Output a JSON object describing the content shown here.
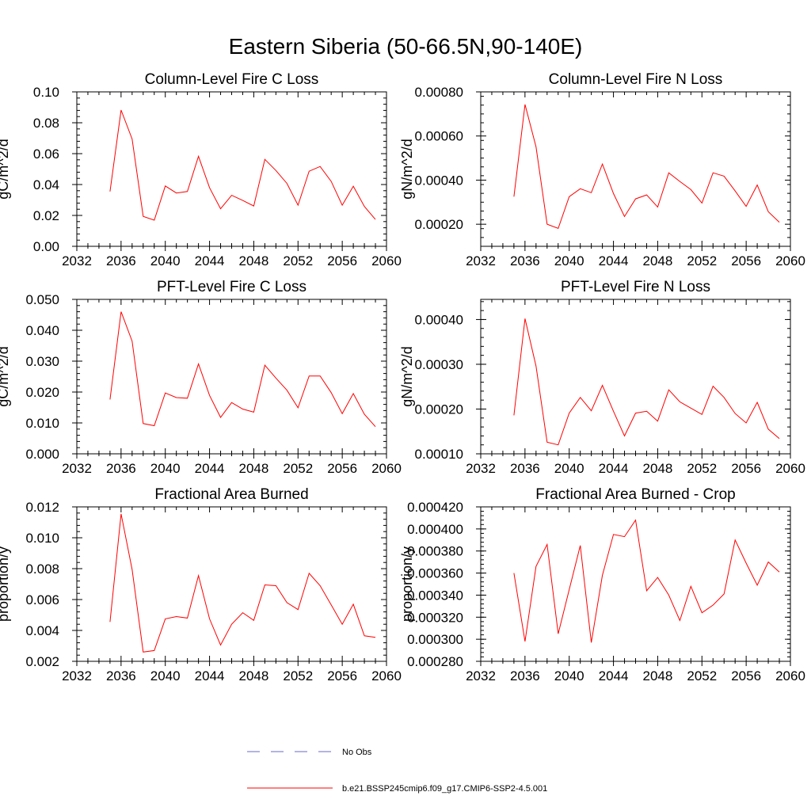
{
  "figure_title": "Eastern Siberia (50-66.5N,90-140E)",
  "colors": {
    "model": "#ff0000",
    "obs": "#6a6acd",
    "axes": "#000000"
  },
  "legend": [
    {
      "label": "No Obs",
      "style": "dashed",
      "color": "#6a6acd"
    },
    {
      "label": "b.e21.BSSP245cmip6.f09_g17.CMIP6-SSP2-4.5.001",
      "style": "solid",
      "color": "#ff0000"
    }
  ],
  "chart_data": [
    {
      "type": "line",
      "title": "Column-Level Fire C Loss",
      "ylabel": "gC/m^2/d",
      "xlabel": "",
      "xlim": [
        2032,
        2060
      ],
      "xticks": [
        "2032",
        "2036",
        "2040",
        "2044",
        "2048",
        "2052",
        "2056",
        "2060"
      ],
      "ylim": [
        0,
        0.1
      ],
      "yticks": [
        "0.00",
        "0.02",
        "0.04",
        "0.06",
        "0.08",
        "0.10"
      ],
      "series": [
        {
          "name": "b.e21.BSSP245cmip6.f09_g17.CMIP6-SSP2-4.5.001",
          "x": [
            2035,
            2036,
            2037,
            2038,
            2039,
            2040,
            2041,
            2042,
            2043,
            2044,
            2045,
            2046,
            2047,
            2048,
            2049,
            2050,
            2051,
            2052,
            2053,
            2054,
            2055,
            2056,
            2057,
            2058,
            2059
          ],
          "y": [
            0.0355,
            0.0882,
            0.0695,
            0.0194,
            0.0169,
            0.0391,
            0.0345,
            0.0355,
            0.0583,
            0.0379,
            0.0243,
            0.033,
            0.0297,
            0.0261,
            0.0563,
            0.0491,
            0.0407,
            0.0266,
            0.0486,
            0.0517,
            0.042,
            0.0266,
            0.0389,
            0.0258,
            0.0174
          ]
        }
      ]
    },
    {
      "type": "line",
      "title": "Column-Level Fire N Loss",
      "ylabel": "gN/m^2/d",
      "xlabel": "",
      "xlim": [
        2032,
        2060
      ],
      "xticks": [
        "2032",
        "2036",
        "2040",
        "2044",
        "2048",
        "2052",
        "2056",
        "2060"
      ],
      "ylim": [
        0.0001,
        0.0008
      ],
      "yticks": [
        "0.00020",
        "0.00040",
        "0.00060",
        "0.00080"
      ],
      "series": [
        {
          "name": "b.e21.BSSP245cmip6.f09_g17.CMIP6-SSP2-4.5.001",
          "x": [
            2035,
            2036,
            2037,
            2038,
            2039,
            2040,
            2041,
            2042,
            2043,
            2044,
            2045,
            2046,
            2047,
            2048,
            2049,
            2050,
            2051,
            2052,
            2053,
            2054,
            2055,
            2056,
            2057,
            2058,
            2059
          ],
          "y": [
            0.000325,
            0.000743,
            0.000551,
            0.0002,
            0.000181,
            0.000325,
            0.000361,
            0.000343,
            0.000473,
            0.000339,
            0.000235,
            0.000315,
            0.000333,
            0.000278,
            0.000433,
            0.000394,
            0.000357,
            0.000296,
            0.000433,
            0.000418,
            0.000351,
            0.000281,
            0.000378,
            0.000257,
            0.000209
          ]
        }
      ]
    },
    {
      "type": "line",
      "title": "PFT-Level Fire C Loss",
      "ylabel": "gC/m^2/d",
      "xlabel": "",
      "xlim": [
        2032,
        2060
      ],
      "xticks": [
        "2032",
        "2036",
        "2040",
        "2044",
        "2048",
        "2052",
        "2056",
        "2060"
      ],
      "ylim": [
        0,
        0.05
      ],
      "yticks": [
        "0.000",
        "0.010",
        "0.020",
        "0.030",
        "0.040",
        "0.050"
      ],
      "series": [
        {
          "name": "b.e21.BSSP245cmip6.f09_g17.CMIP6-SSP2-4.5.001",
          "x": [
            2035,
            2036,
            2037,
            2038,
            2039,
            2040,
            2041,
            2042,
            2043,
            2044,
            2045,
            2046,
            2047,
            2048,
            2049,
            2050,
            2051,
            2052,
            2053,
            2054,
            2055,
            2056,
            2057,
            2058,
            2059
          ],
          "y": [
            0.0176,
            0.046,
            0.0365,
            0.0098,
            0.0091,
            0.0197,
            0.0182,
            0.018,
            0.0291,
            0.0189,
            0.0118,
            0.0166,
            0.0145,
            0.0135,
            0.0287,
            0.0245,
            0.0206,
            0.0149,
            0.0252,
            0.0252,
            0.0198,
            0.013,
            0.0195,
            0.0128,
            0.0088
          ]
        }
      ]
    },
    {
      "type": "line",
      "title": "PFT-Level Fire N Loss",
      "ylabel": "gN/m^2/d",
      "xlabel": "",
      "xlim": [
        2032,
        2060
      ],
      "xticks": [
        "2032",
        "2036",
        "2040",
        "2044",
        "2048",
        "2052",
        "2056",
        "2060"
      ],
      "ylim": [
        0.0001,
        0.000445
      ],
      "yticks": [
        "0.00010",
        "0.00020",
        "0.00030",
        "0.00040"
      ],
      "series": [
        {
          "name": "b.e21.BSSP245cmip6.f09_g17.CMIP6-SSP2-4.5.001",
          "x": [
            2035,
            2036,
            2037,
            2038,
            2039,
            2040,
            2041,
            2042,
            2043,
            2044,
            2045,
            2046,
            2047,
            2048,
            2049,
            2050,
            2051,
            2052,
            2053,
            2054,
            2055,
            2056,
            2057,
            2058,
            2059
          ],
          "y": [
            0.000186,
            0.000402,
            0.000296,
            0.000126,
            0.00012,
            0.000191,
            0.000226,
            0.000196,
            0.000253,
            0.000195,
            0.00014,
            0.000191,
            0.000195,
            0.000173,
            0.000243,
            0.000216,
            0.000202,
            0.000188,
            0.000251,
            0.000226,
            0.00019,
            0.000169,
            0.000215,
            0.000155,
            0.000134
          ]
        }
      ]
    },
    {
      "type": "line",
      "title": "Fractional Area Burned",
      "ylabel": "proportion/y",
      "xlabel": "",
      "xlim": [
        2032,
        2060
      ],
      "xticks": [
        "2032",
        "2036",
        "2040",
        "2044",
        "2048",
        "2052",
        "2056",
        "2060"
      ],
      "ylim": [
        0.002,
        0.012
      ],
      "yticks": [
        "0.002",
        "0.004",
        "0.006",
        "0.008",
        "0.010",
        "0.012"
      ],
      "series": [
        {
          "name": "b.e21.BSSP245cmip6.f09_g17.CMIP6-SSP2-4.5.001",
          "x": [
            2035,
            2036,
            2037,
            2038,
            2039,
            2040,
            2041,
            2042,
            2043,
            2044,
            2045,
            2046,
            2047,
            2048,
            2049,
            2050,
            2051,
            2052,
            2053,
            2054,
            2055,
            2056,
            2057,
            2058,
            2059
          ],
          "y": [
            0.00455,
            0.01155,
            0.00795,
            0.0026,
            0.0027,
            0.00475,
            0.0049,
            0.0048,
            0.00755,
            0.00475,
            0.00305,
            0.0044,
            0.00515,
            0.00465,
            0.00695,
            0.0069,
            0.0058,
            0.00535,
            0.0077,
            0.0069,
            0.00565,
            0.0044,
            0.0057,
            0.00365,
            0.00355
          ]
        }
      ]
    },
    {
      "type": "line",
      "title": "Fractional Area Burned - Crop",
      "ylabel": "proportion/y",
      "xlabel": "",
      "xlim": [
        2032,
        2060
      ],
      "xticks": [
        "2032",
        "2036",
        "2040",
        "2044",
        "2048",
        "2052",
        "2056",
        "2060"
      ],
      "ylim": [
        0.00028,
        0.00042
      ],
      "yticks": [
        "0.000280",
        "0.000300",
        "0.000320",
        "0.000340",
        "0.000360",
        "0.000380",
        "0.000400",
        "0.000420"
      ],
      "series": [
        {
          "name": "b.e21.BSSP245cmip6.f09_g17.CMIP6-SSP2-4.5.001",
          "x": [
            2035,
            2036,
            2037,
            2038,
            2039,
            2040,
            2041,
            2042,
            2043,
            2044,
            2045,
            2046,
            2047,
            2048,
            2049,
            2050,
            2051,
            2052,
            2053,
            2054,
            2055,
            2056,
            2057,
            2058,
            2059
          ],
          "y": [
            0.00036,
            0.000298,
            0.000366,
            0.000386,
            0.000305,
            0.000345,
            0.000385,
            0.000297,
            0.000358,
            0.000395,
            0.000393,
            0.000408,
            0.000344,
            0.000356,
            0.00034,
            0.000317,
            0.000348,
            0.000324,
            0.000331,
            0.000341,
            0.00039,
            0.000369,
            0.000349,
            0.00037,
            0.000361
          ]
        }
      ]
    }
  ]
}
